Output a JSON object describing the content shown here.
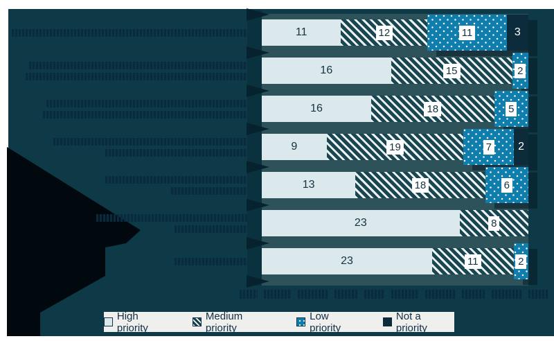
{
  "colors": {
    "chart_background": "#0d3a46",
    "bars_track": "#2e525a",
    "high_priority": "#dbe8ec",
    "medium_priority_stripe_light": "#edf2f3",
    "medium_priority_stripe_dark": "#1a4652",
    "low_priority_blue": "#0f7ead",
    "not_a_priority_navy": "#0c2c3c",
    "arrow_black": "#02090e",
    "legend_background": "#efefed",
    "value_text_dark": "#14333f"
  },
  "chart_data": {
    "type": "bar",
    "orientation": "horizontal",
    "stacked": true,
    "rows_normalized_to_full_width": true,
    "row_count": 7,
    "category_labels_redacted": true,
    "legend_position": "bottom",
    "series": [
      {
        "name": "High priority",
        "key": "high",
        "values": [
          11,
          16,
          16,
          9,
          13,
          23,
          23
        ]
      },
      {
        "name": "Medium priority",
        "key": "medium",
        "values": [
          12,
          15,
          18,
          19,
          18,
          8,
          11
        ]
      },
      {
        "name": "Low priority",
        "key": "low",
        "values": [
          11,
          2,
          5,
          7,
          6,
          0,
          2
        ]
      },
      {
        "name": "Not a priority",
        "key": "not",
        "values": [
          3,
          0,
          0,
          2,
          0,
          0,
          0
        ]
      }
    ]
  },
  "legend": {
    "items": [
      {
        "label": "High priority",
        "swatch": "high"
      },
      {
        "label": "Medium priority",
        "swatch": "med"
      },
      {
        "label": "Low priority",
        "swatch": "low"
      },
      {
        "label": "Not a priority",
        "swatch": "not"
      }
    ]
  },
  "redacted": {
    "category_label_line_widths": [
      [
        345
      ],
      [
        320,
        325
      ],
      [
        295,
        300
      ],
      [
        285,
        210
      ],
      [
        210,
        115
      ],
      [
        223,
        110
      ],
      [
        110
      ]
    ],
    "note_word_widths": [
      26,
      40,
      44,
      34,
      30,
      40,
      44,
      34,
      44,
      30
    ]
  }
}
